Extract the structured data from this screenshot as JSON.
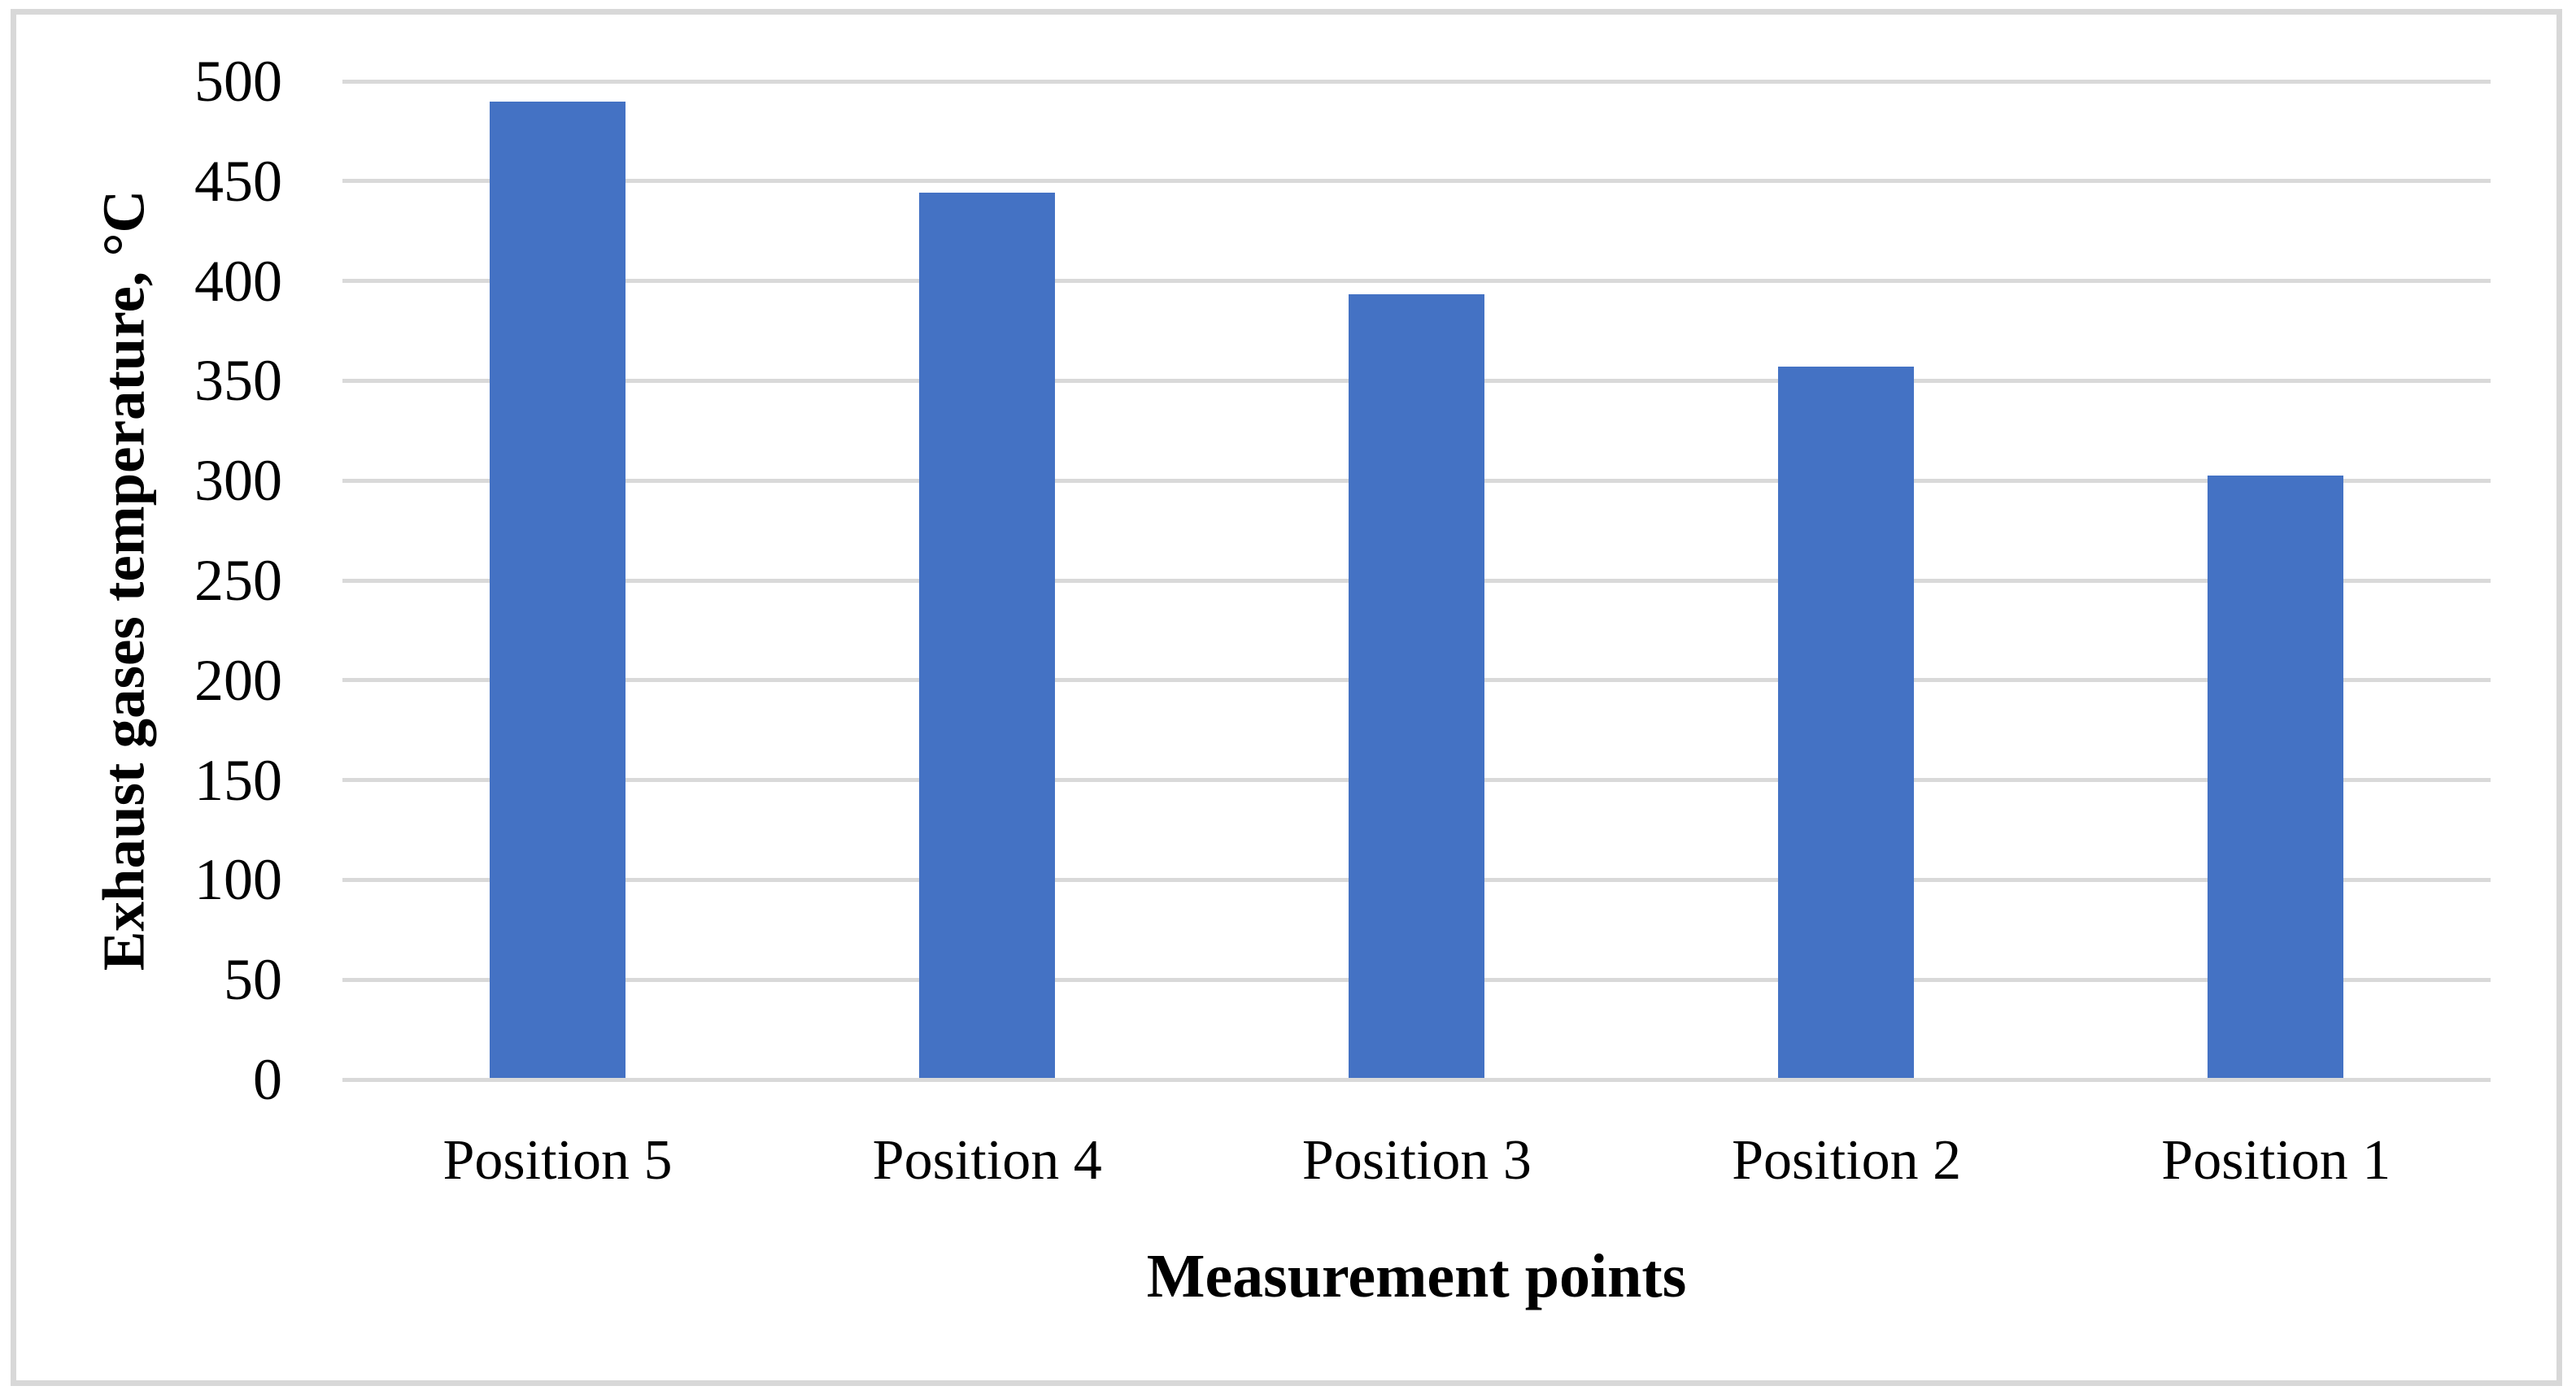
{
  "chart_data": {
    "type": "bar",
    "categories": [
      "Position 5",
      "Position 4",
      "Position 3",
      "Position 2",
      "Position 1"
    ],
    "values": [
      490,
      444,
      393,
      357,
      302
    ],
    "series_name": "Exhaust gases temperature",
    "title": "",
    "xlabel": "Measurement points",
    "ylabel": "Exhaust gases temperature, °C",
    "ylim": [
      0,
      500
    ],
    "ytick_step": 50,
    "ytick_labels": [
      "0",
      "50",
      "100",
      "150",
      "200",
      "250",
      "300",
      "350",
      "400",
      "450",
      "500"
    ],
    "grid": "horizontal-only",
    "legend": "none",
    "colors": {
      "bar": "#4472C4",
      "gridline": "#D9D9D9",
      "frame_border": "#D8D8D8",
      "text": "#000000",
      "background": "#FFFFFF"
    }
  }
}
